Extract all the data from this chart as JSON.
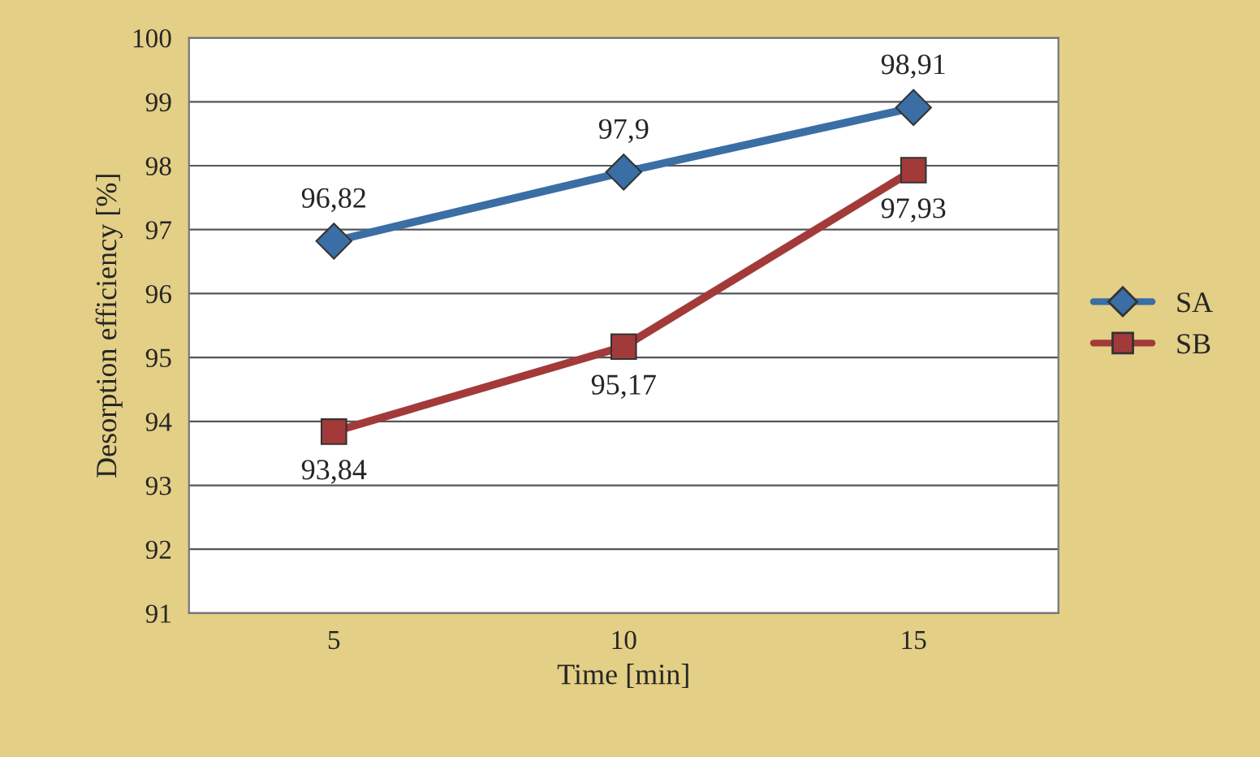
{
  "chart_data": {
    "type": "line",
    "xlabel": "Time [min]",
    "ylabel": "Desorption efficiency [%]",
    "categories": [
      "5",
      "10",
      "15"
    ],
    "series": [
      {
        "name": "SA",
        "color": "#3a6ea5",
        "values": [
          96.82,
          97.9,
          98.91
        ],
        "value_labels": [
          "96,82",
          "97,9",
          "98,91"
        ],
        "marker": "diamond"
      },
      {
        "name": "SB",
        "color": "#a33a3a",
        "values": [
          93.84,
          95.17,
          97.93
        ],
        "value_labels": [
          "93,84",
          "95,17",
          "97,93"
        ],
        "marker": "square"
      }
    ],
    "ylim": [
      91,
      100
    ],
    "yticks": [
      91,
      92,
      93,
      94,
      95,
      96,
      97,
      98,
      99,
      100
    ],
    "grid": "y",
    "legend": "right",
    "line_style": "solid"
  }
}
